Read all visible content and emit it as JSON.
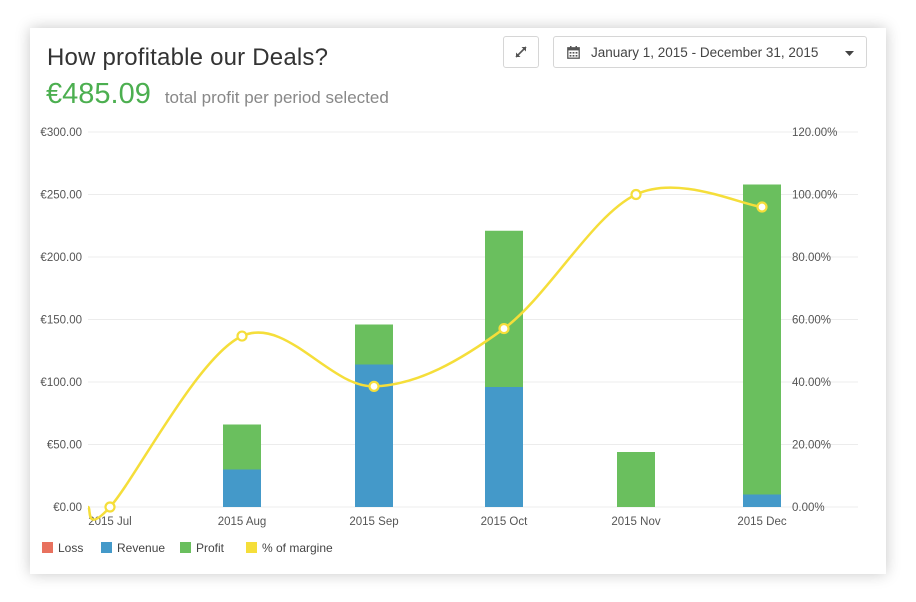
{
  "header": {
    "title": "How profitable our Deals?",
    "profit_value": "€485.09",
    "profit_desc": "total profit per period selected"
  },
  "toolbar": {
    "expand_icon": "expand-arrows-icon",
    "date_range_label": "January 1, 2015 - December 31, 2015",
    "calendar_icon": "calendar-icon",
    "caret_icon": "caret-down-icon"
  },
  "chart_data": {
    "type": "bar",
    "stacked": true,
    "categories": [
      "2015 Jul",
      "2015 Aug",
      "2015 Sep",
      "2015 Oct",
      "2015 Nov",
      "2015 Dec"
    ],
    "series": [
      {
        "name": "Loss",
        "color": "#e8715e",
        "values": [
          0,
          0,
          0,
          0,
          0,
          0
        ]
      },
      {
        "name": "Revenue",
        "color": "#4499c9",
        "values": [
          0,
          30,
          114,
          96,
          0,
          10
        ]
      },
      {
        "name": "Profit",
        "color": "#6abf5e",
        "values": [
          0,
          36,
          32,
          125,
          44,
          248
        ]
      }
    ],
    "line_series": {
      "name": "% of margine",
      "color": "#f5de3a",
      "axis": "right",
      "values": [
        0,
        54.7,
        38.6,
        57.1,
        100,
        96
      ]
    },
    "ylim": [
      0,
      300
    ],
    "y_ticks": [
      "€0.00",
      "€50.00",
      "€100.00",
      "€150.00",
      "€200.00",
      "€250.00",
      "€300.00"
    ],
    "y2lim": [
      0,
      120
    ],
    "y2_ticks": [
      "0.00%",
      "20.00%",
      "40.00%",
      "60.00%",
      "80.00%",
      "100.00%",
      "120.00%"
    ],
    "grid": true,
    "legend_position": "bottom-left"
  }
}
